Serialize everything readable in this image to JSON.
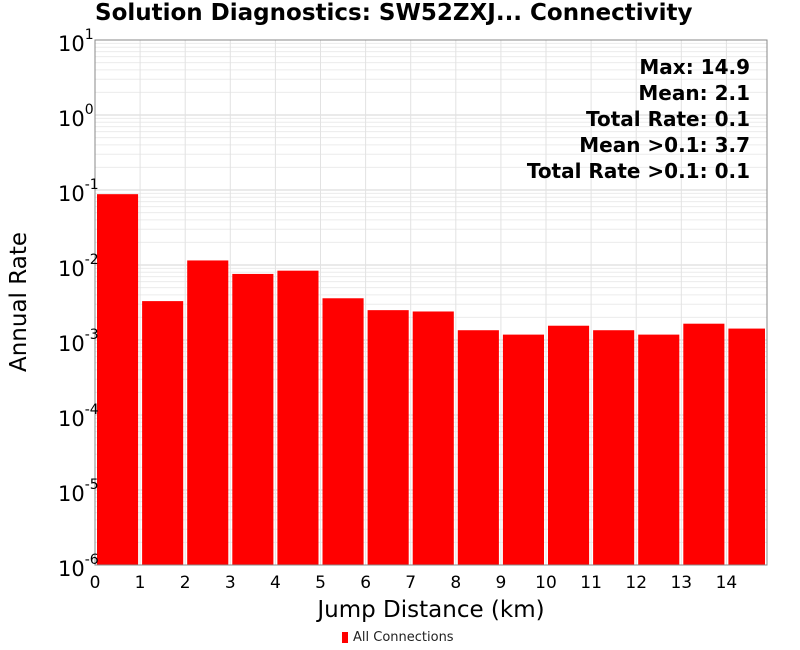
{
  "chart_data": {
    "type": "bar",
    "title": "Solution Diagnostics: SW52ZXJ... Connectivity",
    "xlabel": "Jump Distance (km)",
    "ylabel": "Annual Rate",
    "xlim": [
      0,
      14.9
    ],
    "ylim": [
      1e-06,
      10
    ],
    "yscale": "log",
    "x_ticks": [
      "0",
      "1",
      "2",
      "3",
      "4",
      "5",
      "6",
      "7",
      "8",
      "9",
      "10",
      "11",
      "12",
      "13",
      "14"
    ],
    "y_ticks": [
      {
        "base": "10",
        "exp": "1"
      },
      {
        "base": "10",
        "exp": "0"
      },
      {
        "base": "10",
        "exp": "-1"
      },
      {
        "base": "10",
        "exp": "-2"
      },
      {
        "base": "10",
        "exp": "-3"
      },
      {
        "base": "10",
        "exp": "-4"
      },
      {
        "base": "10",
        "exp": "-5"
      },
      {
        "base": "10",
        "exp": "-6"
      }
    ],
    "bin_width": 1,
    "grid": true,
    "series": [
      {
        "name": "All Connections",
        "color": "#ff0000",
        "x": [
          0.5,
          1.5,
          2.5,
          3.5,
          4.5,
          5.5,
          6.5,
          7.5,
          8.5,
          9.5,
          10.5,
          11.5,
          12.5,
          13.5,
          14.5
        ],
        "values": [
          0.088,
          0.0033,
          0.0115,
          0.0076,
          0.0084,
          0.0036,
          0.0025,
          0.0024,
          0.00135,
          0.00118,
          0.00155,
          0.00135,
          0.00118,
          0.00165,
          0.00142
        ]
      }
    ],
    "annotations": [
      "Max: 14.9",
      "Mean: 2.1",
      "Total Rate: 0.1",
      "Mean >0.1: 3.7",
      "Total Rate >0.1: 0.1"
    ],
    "legend": {
      "placement": "bottom",
      "label": "All Connections",
      "color": "#ff0000"
    }
  }
}
